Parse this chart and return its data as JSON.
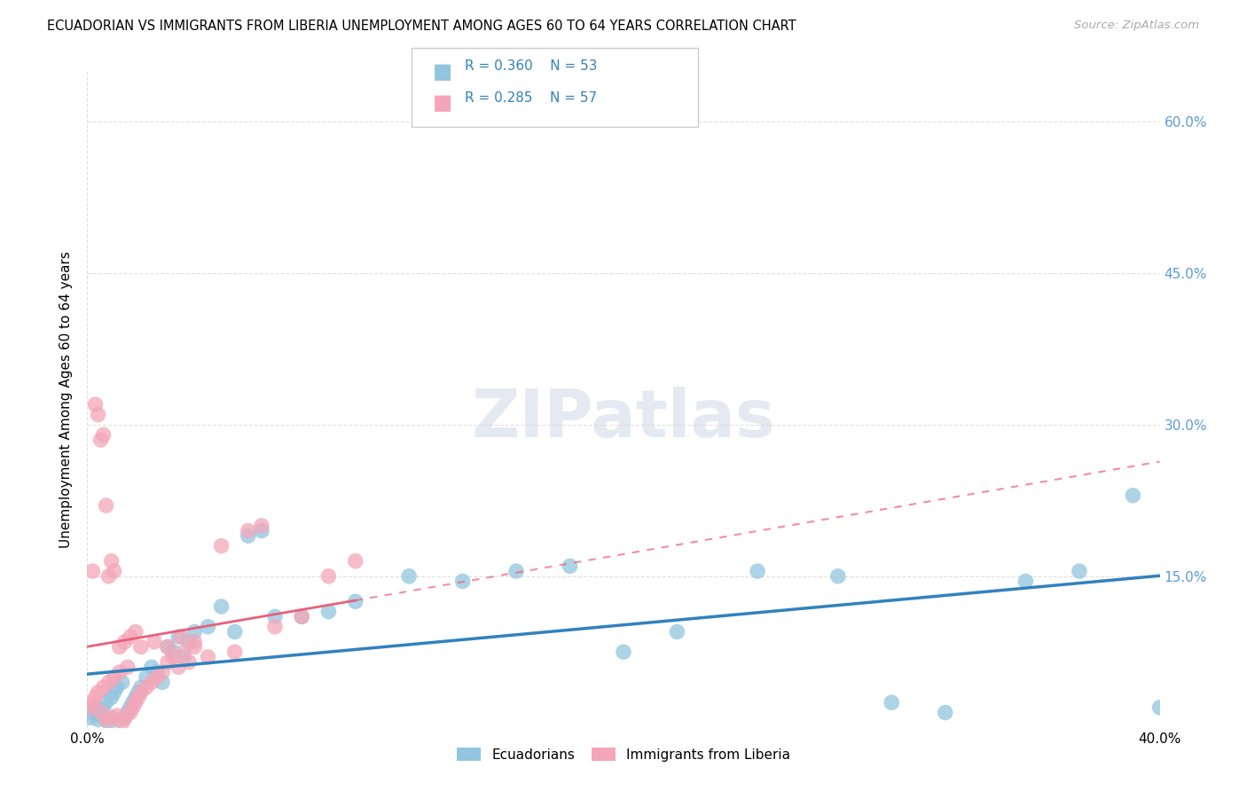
{
  "title": "ECUADORIAN VS IMMIGRANTS FROM LIBERIA UNEMPLOYMENT AMONG AGES 60 TO 64 YEARS CORRELATION CHART",
  "source": "Source: ZipAtlas.com",
  "ylabel": "Unemployment Among Ages 60 to 64 years",
  "xlim": [
    0.0,
    0.4
  ],
  "ylim": [
    0.0,
    0.65
  ],
  "yticks": [
    0.0,
    0.15,
    0.3,
    0.45,
    0.6
  ],
  "ytick_labels": [
    "",
    "15.0%",
    "30.0%",
    "45.0%",
    "60.0%"
  ],
  "watermark": "ZIPatlas",
  "blue_color": "#92c5de",
  "pink_color": "#f4a6b8",
  "blue_line_color": "#3182bd",
  "pink_line_color": "#e8607a",
  "right_axis_color": "#5b9bd5",
  "background_color": "#ffffff",
  "grid_color": "#cccccc",
  "ecu_x": [
    0.001,
    0.002,
    0.003,
    0.004,
    0.005,
    0.006,
    0.007,
    0.008,
    0.009,
    0.01,
    0.011,
    0.012,
    0.013,
    0.014,
    0.015,
    0.016,
    0.017,
    0.018,
    0.019,
    0.02,
    0.022,
    0.024,
    0.026,
    0.028,
    0.03,
    0.032,
    0.034,
    0.036,
    0.038,
    0.04,
    0.045,
    0.05,
    0.055,
    0.06,
    0.065,
    0.07,
    0.08,
    0.09,
    0.1,
    0.12,
    0.14,
    0.16,
    0.18,
    0.2,
    0.22,
    0.25,
    0.28,
    0.3,
    0.32,
    0.35,
    0.37,
    0.39,
    0.4
  ],
  "ecu_y": [
    0.01,
    0.015,
    0.02,
    0.008,
    0.012,
    0.018,
    0.025,
    0.005,
    0.03,
    0.035,
    0.04,
    0.008,
    0.045,
    0.01,
    0.015,
    0.02,
    0.025,
    0.03,
    0.035,
    0.04,
    0.05,
    0.06,
    0.055,
    0.045,
    0.08,
    0.075,
    0.09,
    0.07,
    0.085,
    0.095,
    0.1,
    0.12,
    0.095,
    0.19,
    0.195,
    0.11,
    0.11,
    0.115,
    0.125,
    0.15,
    0.145,
    0.155,
    0.16,
    0.075,
    0.095,
    0.155,
    0.15,
    0.025,
    0.015,
    0.145,
    0.155,
    0.23,
    0.02
  ],
  "lib_x": [
    0.001,
    0.002,
    0.003,
    0.004,
    0.005,
    0.006,
    0.007,
    0.008,
    0.009,
    0.01,
    0.011,
    0.012,
    0.013,
    0.014,
    0.015,
    0.016,
    0.017,
    0.018,
    0.019,
    0.02,
    0.022,
    0.024,
    0.026,
    0.028,
    0.03,
    0.032,
    0.034,
    0.036,
    0.038,
    0.04,
    0.045,
    0.05,
    0.055,
    0.06,
    0.065,
    0.07,
    0.08,
    0.09,
    0.1,
    0.002,
    0.003,
    0.004,
    0.005,
    0.006,
    0.007,
    0.008,
    0.009,
    0.01,
    0.012,
    0.014,
    0.016,
    0.018,
    0.02,
    0.025,
    0.03,
    0.035,
    0.04
  ],
  "lib_y": [
    0.02,
    0.025,
    0.03,
    0.035,
    0.015,
    0.04,
    0.008,
    0.045,
    0.01,
    0.05,
    0.012,
    0.055,
    0.005,
    0.01,
    0.06,
    0.015,
    0.02,
    0.025,
    0.03,
    0.035,
    0.04,
    0.045,
    0.05,
    0.055,
    0.065,
    0.07,
    0.06,
    0.075,
    0.065,
    0.08,
    0.07,
    0.18,
    0.075,
    0.195,
    0.2,
    0.1,
    0.11,
    0.15,
    0.165,
    0.155,
    0.32,
    0.31,
    0.285,
    0.29,
    0.22,
    0.15,
    0.165,
    0.155,
    0.08,
    0.085,
    0.09,
    0.095,
    0.08,
    0.085,
    0.08,
    0.09,
    0.085
  ]
}
